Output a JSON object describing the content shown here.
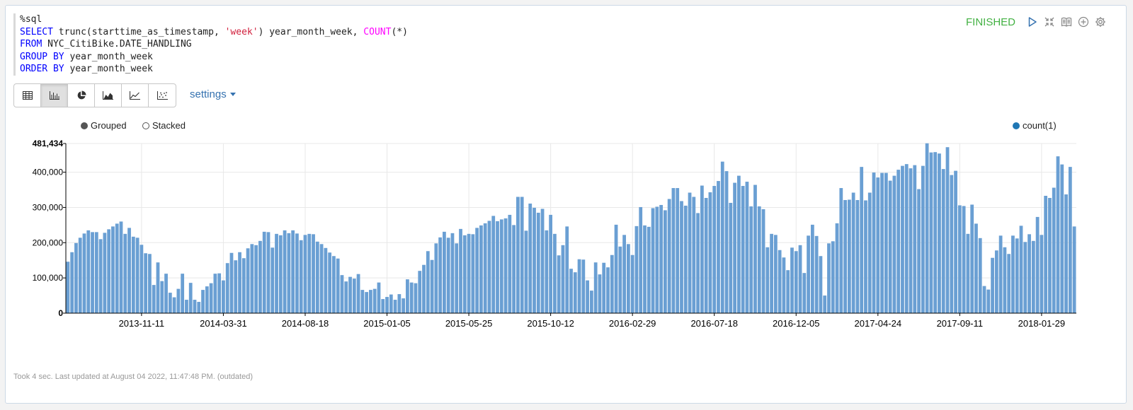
{
  "editor": {
    "magic": "%sql",
    "select_kw": "SELECT",
    "select_fn": "trunc(starttime_as_timestamp, ",
    "select_str": "'week'",
    "select_mid": ") year_month_week, ",
    "select_count": "COUNT",
    "select_end": "(*)",
    "from_kw": "FROM",
    "from_rest": " NYC_CitiBike.DATE_HANDLING",
    "group_kw": "GROUP BY",
    "group_rest": " year_month_week",
    "order_kw": "ORDER BY",
    "order_rest": " year_month_week"
  },
  "status": "FINISHED",
  "paragraph_icons": [
    "play-icon",
    "collapse-icon",
    "book-icon",
    "add-icon",
    "gear-icon"
  ],
  "toolbar": {
    "buttons": [
      "table-icon",
      "bar-chart-icon",
      "pie-chart-icon",
      "area-chart-icon",
      "line-chart-icon",
      "scatter-chart-icon"
    ],
    "active": "bar-chart-icon",
    "settings_label": "settings"
  },
  "legend": {
    "grouped": "Grouped",
    "stacked": "Stacked",
    "selected_mode": "Grouped",
    "series": "count(1)"
  },
  "colors": {
    "bar": "#6a9fd3",
    "series_dot": "#1f77b4",
    "status": "#42b142",
    "link": "#3572b0"
  },
  "chart_data": {
    "type": "bar",
    "ylim": [
      0,
      481434
    ],
    "y_ticks": [
      0,
      100000,
      200000,
      300000,
      400000,
      481434
    ],
    "y_tick_labels": [
      "0",
      "100,000",
      "200,000",
      "300,000",
      "400,000",
      "481,434"
    ],
    "x_tick_labels": [
      "2013-11-11",
      "2014-03-31",
      "2014-08-18",
      "2015-01-05",
      "2015-05-25",
      "2015-10-12",
      "2016-02-29",
      "2016-07-18",
      "2016-12-05",
      "2017-04-24",
      "2017-09-11",
      "2018-01-29"
    ],
    "x_tick_index": [
      18,
      38,
      58,
      78,
      98,
      118,
      138,
      158,
      178,
      198,
      218,
      238
    ],
    "series": [
      {
        "name": "count(1)",
        "values": [
          146000,
          173000,
          199000,
          214000,
          226000,
          235000,
          230000,
          230000,
          210000,
          228000,
          238000,
          246000,
          254000,
          260000,
          225000,
          242000,
          217000,
          214000,
          194000,
          170000,
          168000,
          80000,
          144000,
          91000,
          112000,
          58000,
          45000,
          69000,
          112000,
          38000,
          86000,
          38000,
          32000,
          66000,
          76000,
          85000,
          112000,
          113000,
          93000,
          142000,
          171000,
          150000,
          173000,
          156000,
          184000,
          196000,
          193000,
          205000,
          231000,
          230000,
          186000,
          225000,
          221000,
          235000,
          227000,
          235000,
          226000,
          207000,
          222000,
          225000,
          224000,
          203000,
          196000,
          185000,
          172000,
          162000,
          155000,
          108000,
          90000,
          103000,
          98000,
          111000,
          66000,
          60000,
          66000,
          69000,
          87000,
          40000,
          46000,
          53000,
          38000,
          54000,
          42000,
          96000,
          87000,
          85000,
          120000,
          137000,
          176000,
          151000,
          198000,
          215000,
          231000,
          214000,
          227000,
          198000,
          239000,
          221000,
          225000,
          224000,
          242000,
          249000,
          255000,
          262000,
          276000,
          261000,
          266000,
          269000,
          279000,
          250000,
          330000,
          330000,
          234000,
          311000,
          299000,
          285000,
          296000,
          235000,
          279000,
          225000,
          164000,
          193000,
          246000,
          126000,
          116000,
          153000,
          152000,
          93000,
          64000,
          144000,
          110000,
          143000,
          130000,
          165000,
          251000,
          189000,
          222000,
          196000,
          165000,
          247000,
          301000,
          249000,
          245000,
          298000,
          302000,
          307000,
          292000,
          324000,
          355000,
          355000,
          318000,
          305000,
          342000,
          330000,
          284000,
          362000,
          327000,
          343000,
          361000,
          375000,
          430000,
          403000,
          313000,
          370000,
          390000,
          361000,
          373000,
          303000,
          364000,
          303000,
          295000,
          187000,
          225000,
          222000,
          179000,
          158000,
          122000,
          186000,
          176000,
          193000,
          114000,
          220000,
          251000,
          219000,
          162000,
          50000,
          198000,
          204000,
          255000,
          355000,
          321000,
          322000,
          342000,
          321000,
          415000,
          320000,
          342000,
          399000,
          385000,
          398000,
          398000,
          376000,
          390000,
          407000,
          418000,
          423000,
          411000,
          420000,
          352000,
          418000,
          482000,
          456000,
          457000,
          453000,
          409000,
          471000,
          392000,
          404000,
          306000,
          304000,
          225000,
          308000,
          254000,
          213000,
          77000,
          67000,
          157000,
          178000,
          220000,
          187000,
          168000,
          220000,
          212000,
          248000,
          202000,
          224000,
          205000,
          273000,
          222000,
          333000,
          327000,
          356000,
          445000,
          422000,
          337000,
          415000,
          246000
        ]
      }
    ]
  },
  "footer": "Took 4 sec. Last updated at August 04 2022, 11:47:48 PM. (outdated)"
}
